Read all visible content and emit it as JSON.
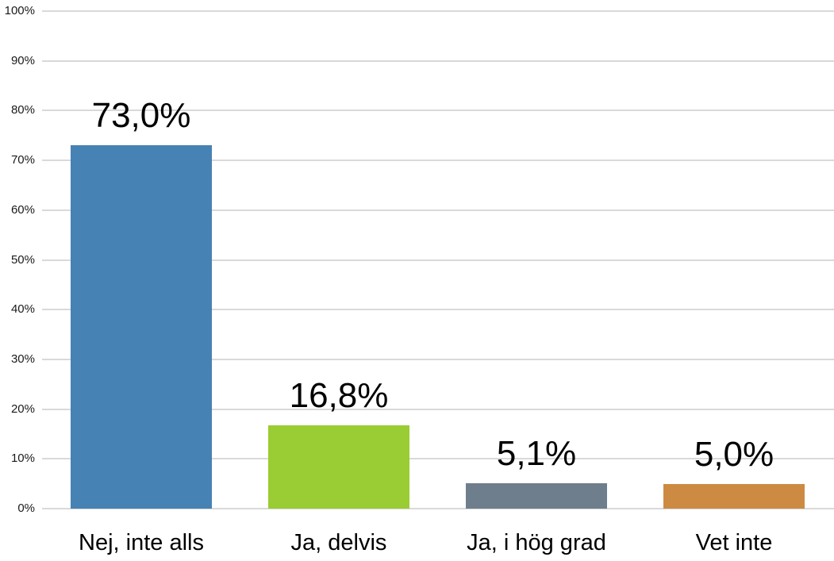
{
  "chart_data": {
    "type": "bar",
    "title": "",
    "xlabel": "",
    "ylabel": "",
    "categories": [
      "Nej, inte alls",
      "Ja, delvis",
      "Ja, i hög grad",
      "Vet inte"
    ],
    "values": [
      73.0,
      16.8,
      5.1,
      5.0
    ],
    "value_labels": [
      "73,0%",
      "16,8%",
      "5,1%",
      "5,0%"
    ],
    "bar_colors": [
      "#4682B4",
      "#9ACC33",
      "#6F7E8C",
      "#CD8A42"
    ],
    "ylim": [
      0,
      100
    ],
    "y_tick_step": 10,
    "y_tick_labels": [
      "0%",
      "10%",
      "20%",
      "30%",
      "40%",
      "50%",
      "60%",
      "70%",
      "80%",
      "90%",
      "100%"
    ],
    "grid": true,
    "gridline_color": "#D9D9D9",
    "legend_position": "none",
    "decimal_separator": ","
  }
}
